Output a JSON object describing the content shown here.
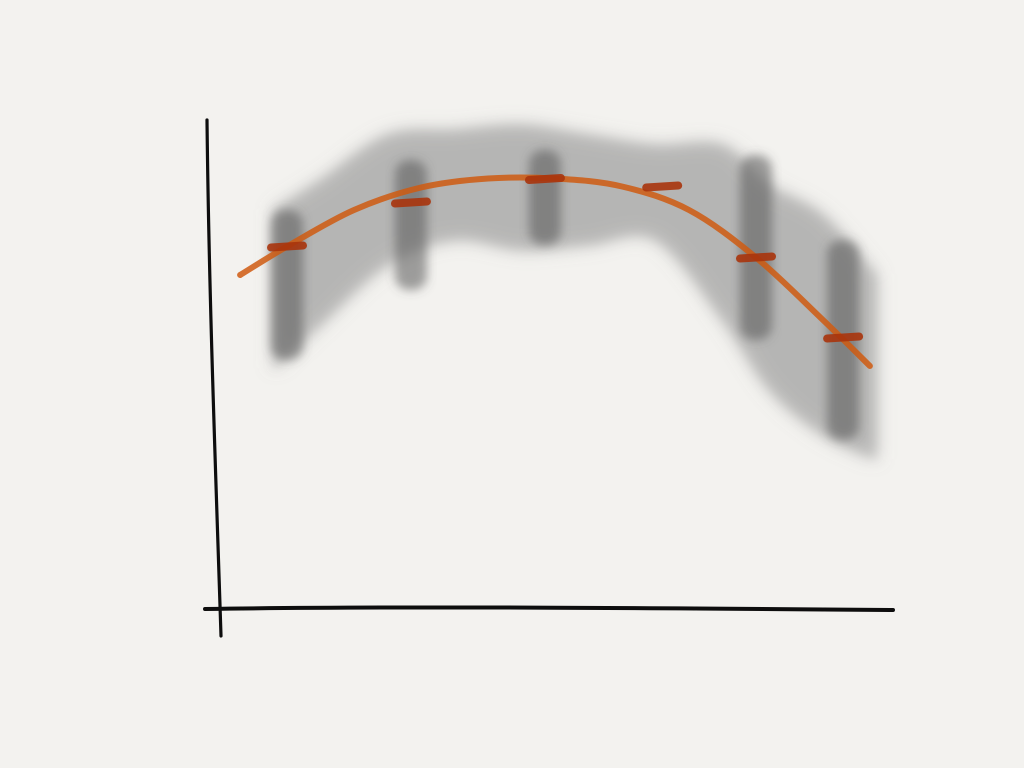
{
  "colors": {
    "background": "#f3f2ef",
    "axis": "#0d0d0d",
    "curve": "#cf5a10",
    "marker": "#a8340c",
    "band": "#8a8a8a"
  },
  "chart_data": {
    "type": "line",
    "title": "",
    "xlabel": "",
    "ylabel": "",
    "xlim": [
      0,
      10
    ],
    "ylim": [
      0,
      10
    ],
    "grid": false,
    "legend": "none",
    "curve": {
      "x": [
        0.3,
        1.0,
        2.0,
        3.0,
        4.0,
        5.0,
        6.0,
        7.0,
        8.0,
        9.0,
        9.7
      ],
      "y": [
        6.7,
        7.27,
        8.0,
        8.45,
        8.63,
        8.63,
        8.47,
        8.0,
        7.05,
        5.8,
        4.88
      ]
    },
    "markers": {
      "x": [
        1.0,
        2.85,
        4.85,
        6.6,
        8.0,
        9.3
      ],
      "y": [
        7.27,
        8.15,
        8.62,
        8.47,
        7.05,
        5.45
      ]
    },
    "uncertainty_band": {
      "x": [
        0.8,
        1.5,
        2.5,
        3.5,
        4.5,
        5.5,
        6.5,
        7.5,
        8.2,
        9.0,
        9.8
      ],
      "upper": [
        8.0,
        8.6,
        9.5,
        9.6,
        9.7,
        9.5,
        9.3,
        9.3,
        8.5,
        7.9,
        6.7
      ],
      "lower": [
        4.8,
        5.7,
        6.9,
        7.4,
        7.2,
        7.3,
        7.4,
        5.8,
        4.4,
        3.5,
        3.0
      ]
    },
    "darker_bands": {
      "x": [
        1.0,
        2.85,
        4.85,
        8.0,
        9.3
      ],
      "upper": [
        8.0,
        9.0,
        9.2,
        9.1,
        7.4
      ],
      "lower": [
        5.0,
        6.4,
        7.3,
        5.4,
        3.4
      ]
    }
  }
}
